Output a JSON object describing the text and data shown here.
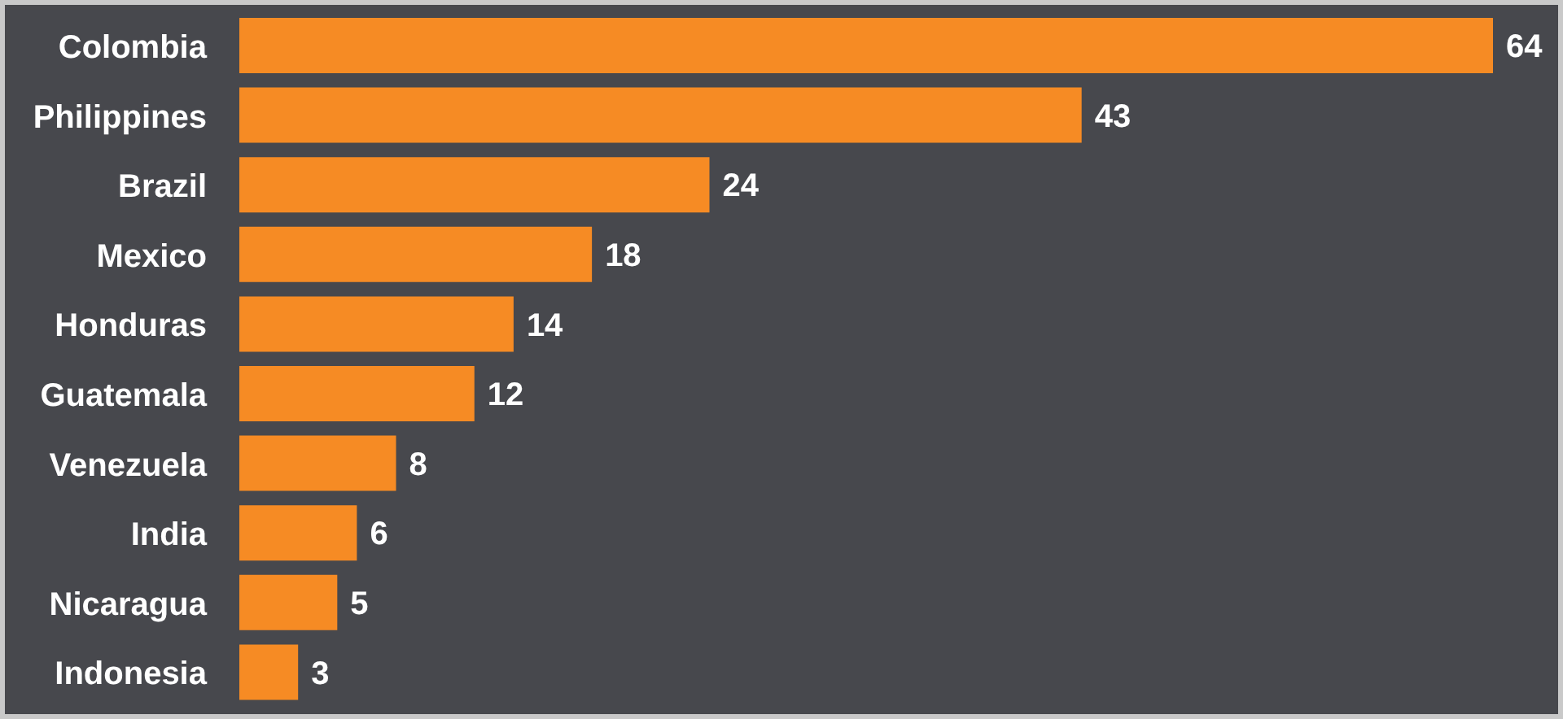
{
  "chart_data": {
    "type": "bar",
    "orientation": "horizontal",
    "categories": [
      "Colombia",
      "Philippines",
      "Brazil",
      "Mexico",
      "Honduras",
      "Guatemala",
      "Venezuela",
      "India",
      "Nicaragua",
      "Indonesia"
    ],
    "values": [
      64,
      43,
      24,
      18,
      14,
      12,
      8,
      6,
      5,
      3
    ],
    "color": "#f68b24",
    "data_labels": true
  }
}
